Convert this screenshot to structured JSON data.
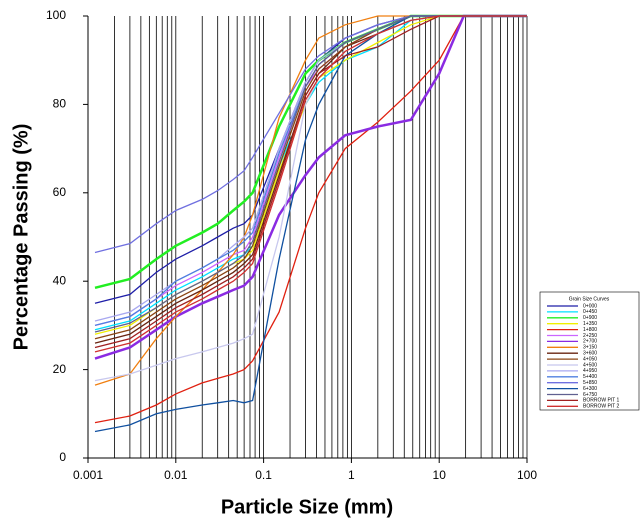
{
  "chart_data": {
    "type": "line",
    "x_scale": "log",
    "grid": true,
    "minor_grid": true,
    "legend_position": "right",
    "x_label": "Particle Size (mm)",
    "y_label": "Percentage Passing (%)",
    "legend_title": "Grain Size Curves",
    "xlim": [
      0.001,
      100
    ],
    "xticks": [
      0.001,
      0.01,
      0.1,
      1,
      10,
      100
    ],
    "ylim": [
      0,
      100
    ],
    "yticks": [
      0,
      20,
      40,
      60,
      80,
      100
    ],
    "x": [
      0.0012,
      0.003,
      0.006,
      0.01,
      0.02,
      0.03,
      0.045,
      0.06,
      0.075,
      0.15,
      0.3,
      0.425,
      0.85,
      2,
      4.75,
      10,
      19,
      100
    ],
    "series": [
      {
        "name": "0+000",
        "color": "#1f1fa8",
        "values": [
          35,
          37,
          42,
          45,
          48,
          50,
          52,
          53,
          55,
          70,
          85,
          90,
          95,
          98,
          100,
          100,
          100,
          100
        ]
      },
      {
        "name": "0+450",
        "color": "#00e0ff",
        "values": [
          29,
          31,
          35,
          38,
          41,
          43,
          45,
          46,
          48,
          66,
          80,
          85,
          90,
          93,
          99,
          100,
          100,
          100
        ]
      },
      {
        "name": "0+900",
        "color": "#22ee22",
        "values": [
          38.5,
          40.5,
          45,
          48,
          51,
          53,
          56,
          58,
          60,
          75,
          87,
          90,
          94,
          97,
          100,
          100,
          100,
          100
        ]
      },
      {
        "name": "1+350",
        "color": "#f0f000",
        "values": [
          28,
          30,
          34,
          37,
          40,
          42,
          44,
          45,
          47,
          65,
          80,
          86,
          90,
          94,
          98,
          100,
          100,
          100
        ]
      },
      {
        "name": "1+800",
        "color": "#e02010",
        "values": [
          8,
          9.5,
          12,
          14.5,
          17,
          18,
          19,
          20,
          22,
          33,
          52,
          60,
          70,
          76,
          83,
          90,
          100,
          100
        ]
      },
      {
        "name": "2+250",
        "color": "#cc66ff",
        "values": [
          30,
          32,
          36,
          39,
          42,
          44,
          46,
          47,
          50,
          68,
          84,
          88,
          93,
          97,
          100,
          100,
          100,
          100
        ]
      },
      {
        "name": "2+700",
        "color": "#8a2be2",
        "values": [
          22.5,
          25,
          29,
          32,
          35,
          36.5,
          38,
          39,
          41,
          55,
          64,
          68,
          73,
          75,
          76.5,
          87,
          100,
          100
        ]
      },
      {
        "name": "3+150",
        "color": "#f07f10",
        "values": [
          16.5,
          19,
          27,
          32,
          38,
          42,
          46,
          50,
          55,
          77,
          90,
          95,
          98,
          100,
          100,
          100,
          100,
          100
        ]
      },
      {
        "name": "3+600",
        "color": "#6a2410",
        "values": [
          26,
          28,
          32,
          35,
          38,
          40,
          42,
          44,
          46,
          64,
          82,
          87,
          93,
          96,
          99,
          100,
          100,
          100
        ]
      },
      {
        "name": "4+050",
        "color": "#8b4513",
        "values": [
          27,
          29,
          33,
          36,
          39,
          41,
          43,
          45,
          48,
          66,
          83,
          88,
          93,
          97,
          100,
          100,
          100,
          100
        ]
      },
      {
        "name": "4+500",
        "color": "#c8c8ee",
        "values": [
          17.5,
          19,
          21,
          22.5,
          24,
          25,
          26,
          27,
          28,
          50,
          80,
          86,
          92,
          96,
          99,
          100,
          100,
          100
        ]
      },
      {
        "name": "4+950",
        "color": "#a8a8f0",
        "values": [
          31,
          33,
          37,
          40,
          43,
          45,
          48,
          50,
          52,
          70,
          85,
          90,
          94,
          97,
          100,
          100,
          100,
          100
        ]
      },
      {
        "name": "5+400",
        "color": "#5080e0",
        "values": [
          30,
          32,
          36,
          40,
          43,
          45,
          47,
          49,
          51,
          69,
          84,
          89,
          94,
          97,
          100,
          100,
          100,
          100
        ]
      },
      {
        "name": "5+850",
        "color": "#7070e0",
        "values": [
          46.5,
          48.5,
          53,
          56,
          58.5,
          60.5,
          63,
          65,
          68,
          78,
          88,
          91,
          95,
          98,
          100,
          100,
          100,
          100
        ]
      },
      {
        "name": "6+300",
        "color": "#1050a0",
        "values": [
          6,
          7.5,
          10,
          11,
          12,
          12.5,
          13,
          12.5,
          13,
          45,
          72,
          80,
          91,
          96,
          100,
          100,
          100,
          100
        ]
      },
      {
        "name": "6+750",
        "color": "#606090",
        "values": [
          28.5,
          30.5,
          34,
          37,
          40,
          42,
          44,
          46,
          49,
          67,
          84,
          89,
          94,
          97,
          100,
          100,
          100,
          100
        ]
      },
      {
        "name": "BORROW PIT 1",
        "color": "#a02020",
        "values": [
          25,
          27,
          31,
          34,
          37,
          39,
          41,
          43,
          45,
          63,
          82,
          87,
          91,
          93,
          97,
          100,
          100,
          100
        ]
      },
      {
        "name": "BORROW PIT 2",
        "color": "#d03030",
        "values": [
          24,
          26,
          30,
          33,
          36,
          38,
          40,
          42,
          44,
          62,
          81,
          86,
          92,
          96,
          99,
          100,
          100,
          100
        ]
      }
    ]
  }
}
